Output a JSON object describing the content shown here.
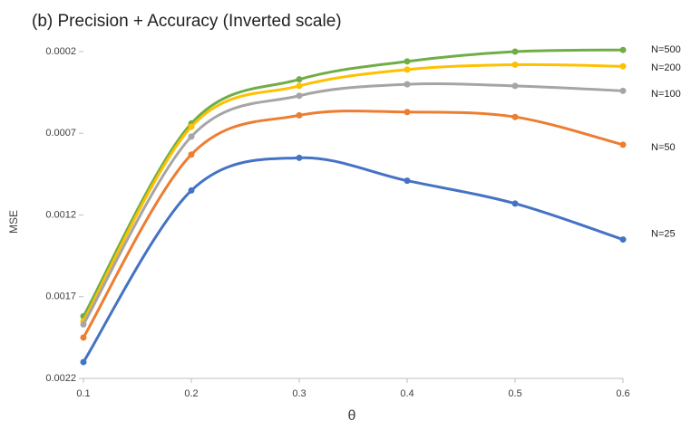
{
  "chart_data": {
    "type": "line",
    "title": "(b) Precision + Accuracy (Inverted scale)",
    "x_label": "θ",
    "y_label": "MSE",
    "x": [
      0.1,
      0.2,
      0.3,
      0.4,
      0.5,
      0.6
    ],
    "xlim": [
      0.1,
      0.6
    ],
    "xticks": [
      0.1,
      0.2,
      0.3,
      0.4,
      0.5,
      0.6
    ],
    "ylim": [
      0.0002,
      0.0022
    ],
    "yticks": [
      0.0002,
      0.0007,
      0.0012,
      0.0017,
      0.0022
    ],
    "y_inverted": true,
    "grid": false,
    "smooth": true,
    "series": [
      {
        "name": "N=500",
        "color": "#70ad47",
        "values": [
          0.00182,
          0.00064,
          0.00037,
          0.00026,
          0.0002,
          0.00019
        ]
      },
      {
        "name": "N=200",
        "color": "#ffc000",
        "values": [
          0.00185,
          0.00066,
          0.00041,
          0.00031,
          0.00028,
          0.00029
        ]
      },
      {
        "name": "N=100",
        "color": "#a5a5a5",
        "values": [
          0.00187,
          0.00072,
          0.00047,
          0.0004,
          0.00041,
          0.00044
        ]
      },
      {
        "name": "N=50",
        "color": "#ed7d31",
        "values": [
          0.00195,
          0.00083,
          0.00059,
          0.00057,
          0.0006,
          0.00077
        ]
      },
      {
        "name": "N=25",
        "color": "#4472c4",
        "values": [
          0.0021,
          0.00105,
          0.00085,
          0.00099,
          0.00113,
          0.00135
        ]
      }
    ]
  }
}
